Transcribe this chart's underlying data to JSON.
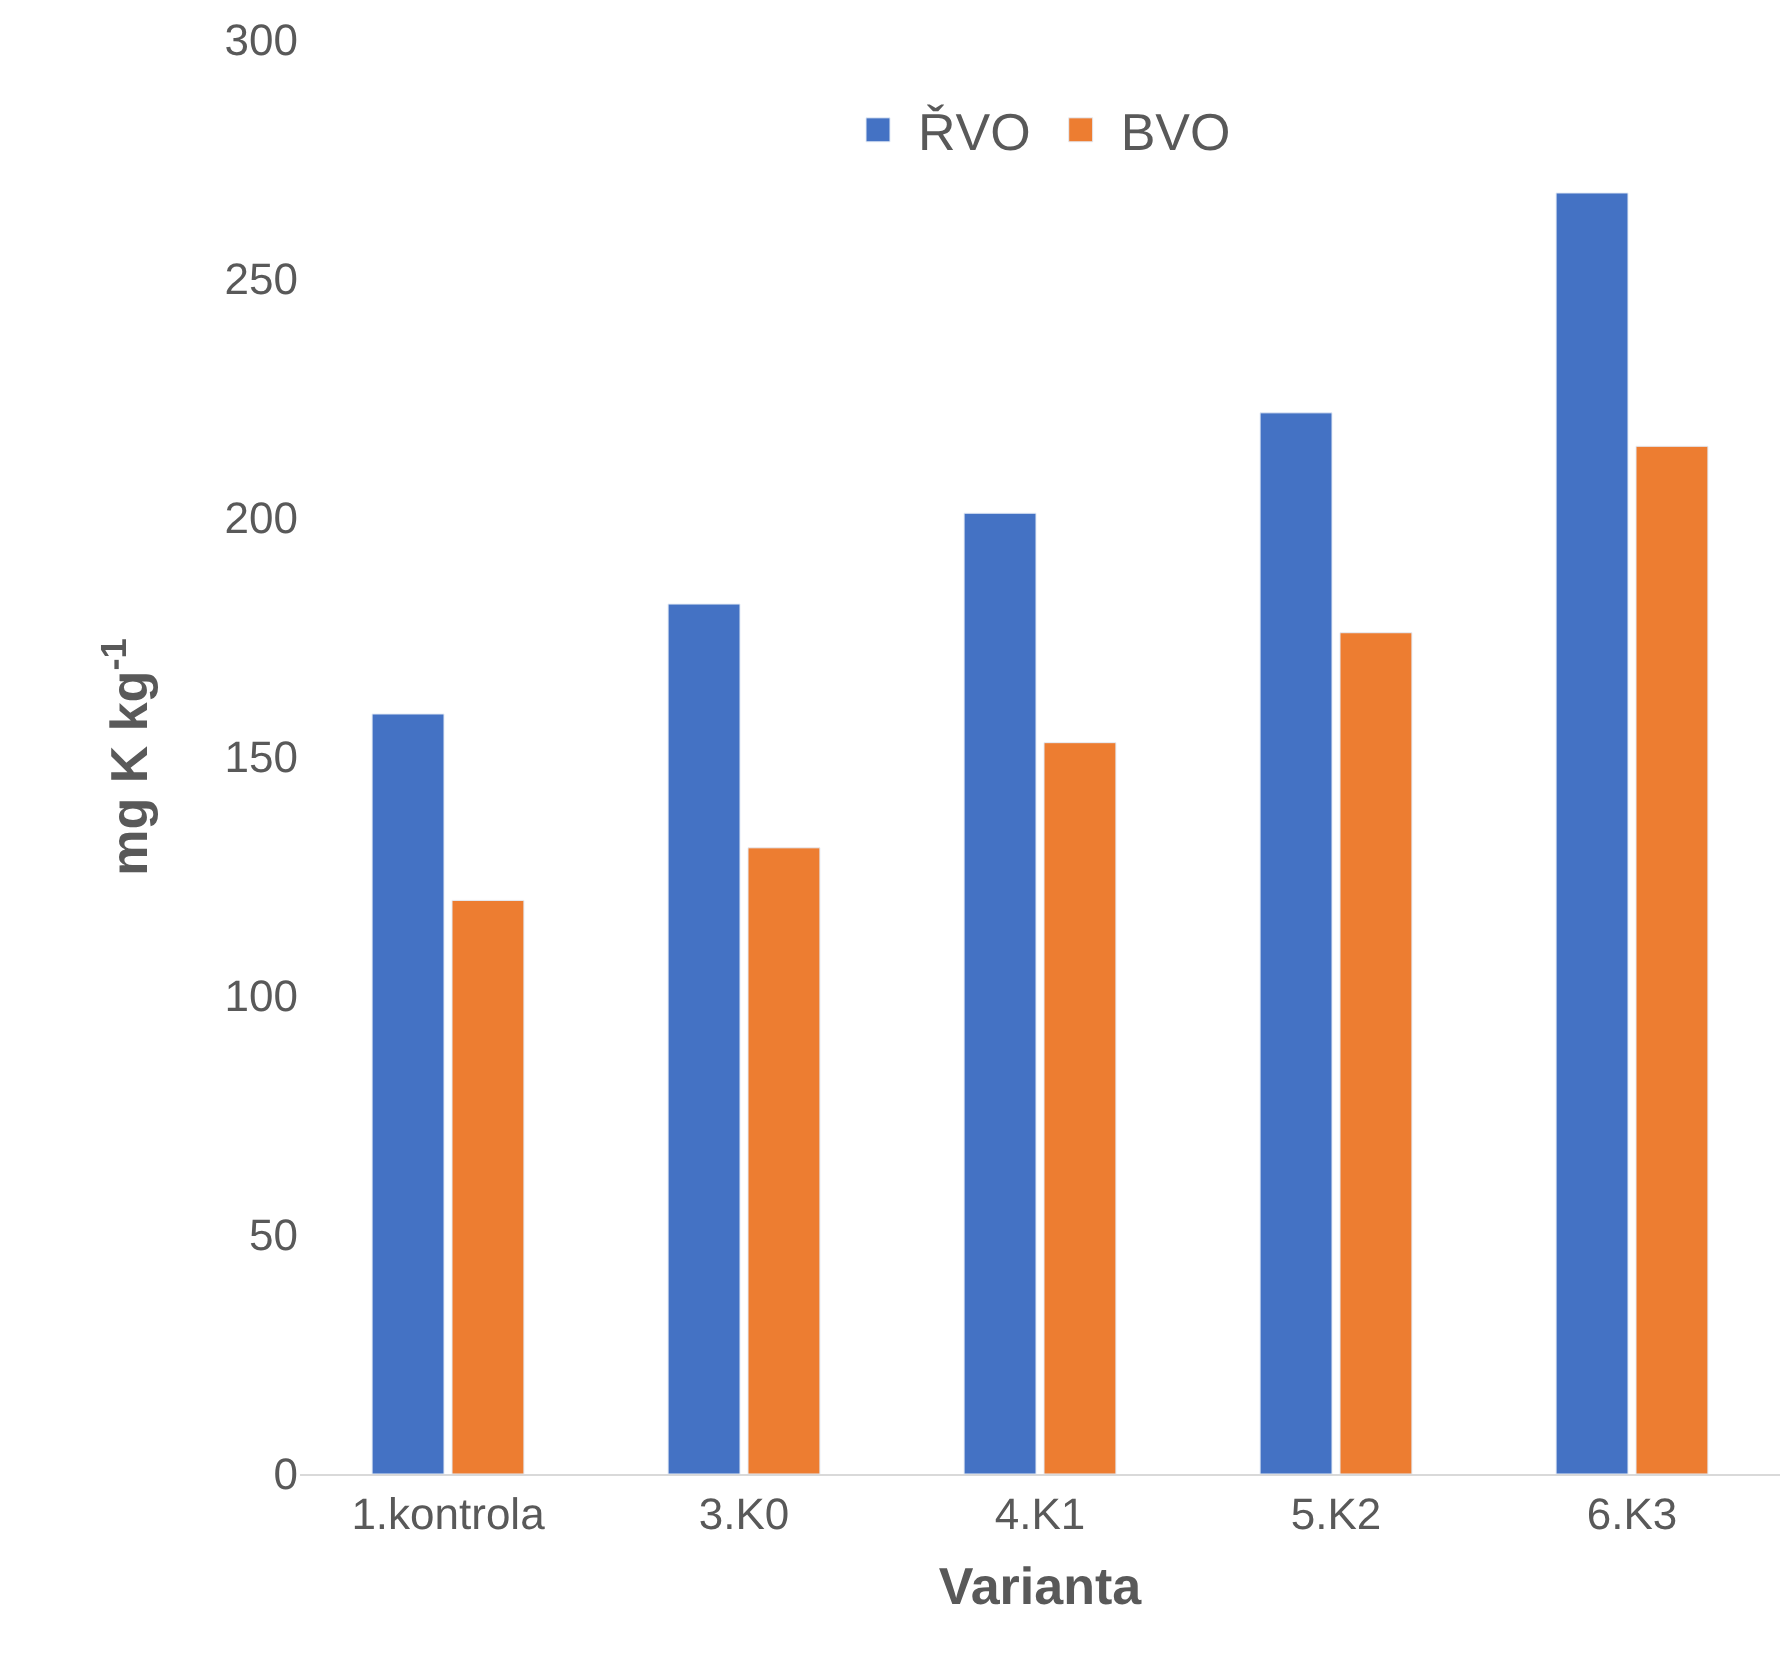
{
  "chart_data": {
    "type": "bar",
    "xlabel": "Varianta",
    "ylabel": "mg K kg$^{-1}$",
    "categories": [
      "1.kontrola",
      "3.K0",
      "4.K1",
      "5.K2",
      "6.K3"
    ],
    "series": [
      {
        "name": "ŘVO",
        "color": "#4472c4",
        "values": [
          159,
          182,
          201,
          222,
          268
        ]
      },
      {
        "name": "BVO",
        "color": "#ed7d31",
        "values": [
          120,
          131,
          153,
          176,
          215
        ]
      }
    ],
    "ylim": [
      0,
      300
    ],
    "yticks": [
      0,
      50,
      100,
      150,
      200,
      250,
      300
    ],
    "legend": "top"
  }
}
